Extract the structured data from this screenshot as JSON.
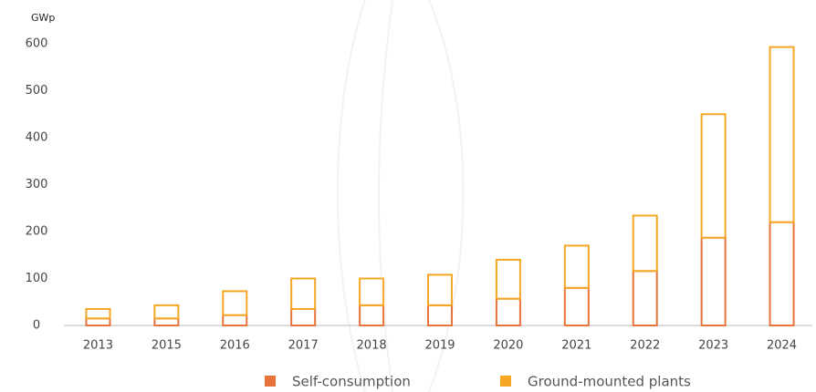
{
  "chart_data": {
    "type": "bar",
    "stacked": true,
    "unit_label": "GWp",
    "categories": [
      "2013",
      "2015",
      "2016",
      "2017",
      "2018",
      "2019",
      "2020",
      "2021",
      "2022",
      "2023",
      "2024"
    ],
    "series": [
      {
        "name": "Self-consumption",
        "color": "#e8743b",
        "values": [
          15,
          15,
          22,
          35,
          43,
          43,
          57,
          80,
          116,
          187,
          220
        ]
      },
      {
        "name": "Ground-mounted plants",
        "color": "#f5a623",
        "values": [
          20,
          28,
          51,
          65,
          57,
          65,
          83,
          90,
          118,
          263,
          373
        ]
      }
    ],
    "ylim": [
      0,
      600
    ],
    "yticks": [
      0,
      100,
      200,
      300,
      400,
      500,
      600
    ],
    "grid": false
  }
}
